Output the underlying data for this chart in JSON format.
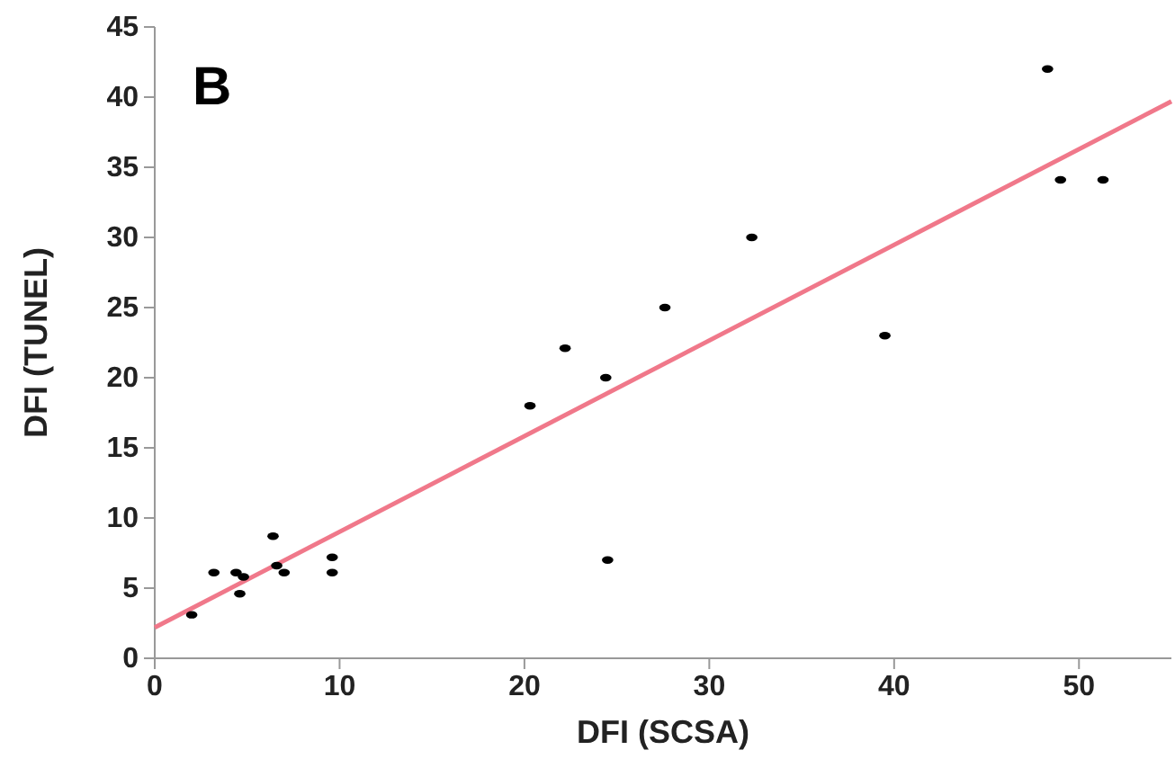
{
  "chart_data": {
    "type": "scatter",
    "title": "B",
    "xlabel": "DFI (SCSA)",
    "ylabel": "DFI (TUNEL)",
    "xlim": [
      0,
      55
    ],
    "ylim": [
      0,
      45
    ],
    "xticks": [
      0,
      10,
      20,
      30,
      40,
      50
    ],
    "yticks": [
      0,
      5,
      10,
      15,
      20,
      25,
      30,
      35,
      40,
      45
    ],
    "grid": false,
    "series": [
      {
        "marker": "circle",
        "color": "#000000",
        "x": [
          2,
          3.2,
          4.4,
          4.6,
          4.8,
          6.4,
          6.6,
          7,
          9.6,
          9.6,
          20.3,
          22.2,
          24.4,
          24.5,
          27.6,
          32.3,
          39.5,
          48.3,
          49,
          51.3
        ],
        "values": [
          3.1,
          6.1,
          6.1,
          4.6,
          5.8,
          8.7,
          6.6,
          6.1,
          7.2,
          6.1,
          18,
          22.1,
          20,
          7,
          25,
          30,
          23,
          42,
          34.1,
          34.1
        ]
      },
      {
        "type": "line",
        "color": "#f0788a",
        "x": [
          0,
          55
        ],
        "values": [
          2.2,
          39.7
        ],
        "line_style": "solid"
      }
    ]
  }
}
